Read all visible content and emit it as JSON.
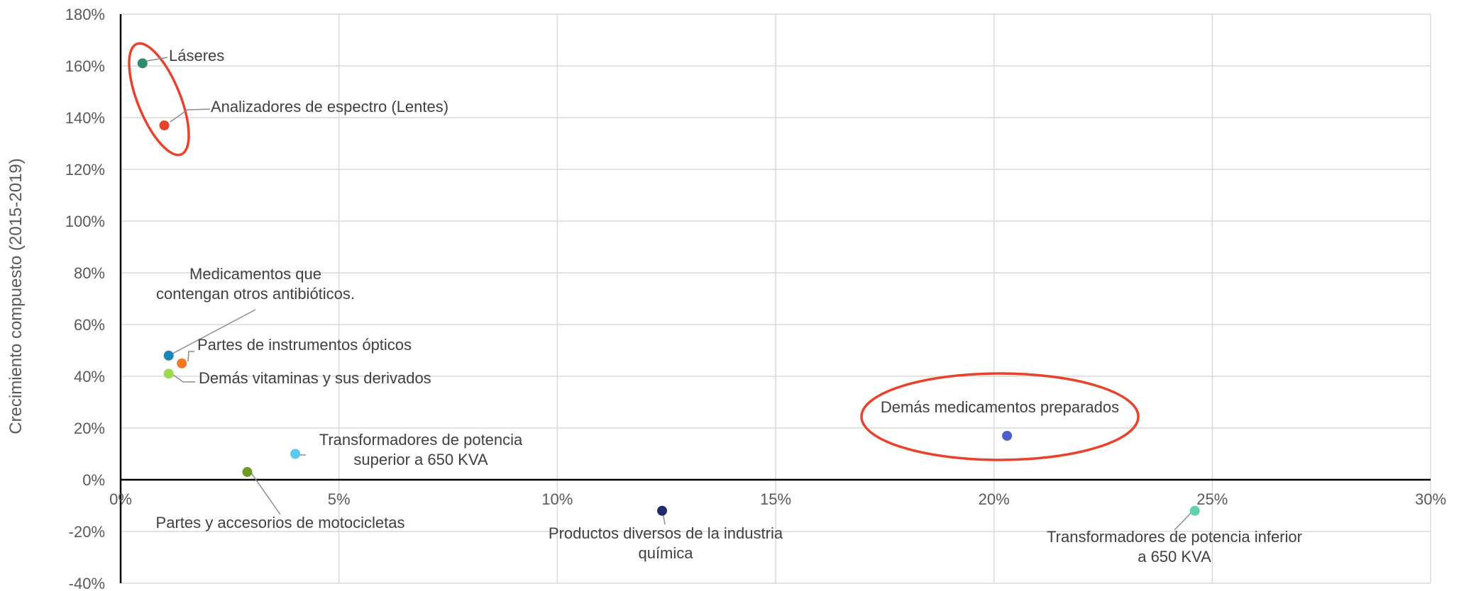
{
  "chart_data": {
    "type": "scatter",
    "title": "",
    "xlabel": "",
    "ylabel": "Crecimiento compuesto (2015-2019)",
    "xlim": [
      0,
      30
    ],
    "ylim": [
      -40,
      180
    ],
    "x_ticks": [
      0,
      5,
      10,
      15,
      20,
      25,
      30
    ],
    "y_ticks": [
      -40,
      -20,
      0,
      20,
      40,
      60,
      80,
      100,
      120,
      140,
      160,
      180
    ],
    "x_tick_format": "%",
    "y_tick_format": "%",
    "grid": true,
    "legend": "none",
    "points": [
      {
        "label": [
          "Láseres"
        ],
        "x": 0.5,
        "y": 161,
        "color": "#2e8b6e"
      },
      {
        "label": [
          "Analizadores de espectro (Lentes)"
        ],
        "x": 1.0,
        "y": 137,
        "color": "#e8412c"
      },
      {
        "label": [
          "Medicamentos que",
          "contengan otros antibióticos."
        ],
        "x": 1.1,
        "y": 48,
        "color": "#1a86b5"
      },
      {
        "label": [
          "Partes de instrumentos ópticos"
        ],
        "x": 1.4,
        "y": 45,
        "color": "#f07a24"
      },
      {
        "label": [
          "Demás vitaminas y sus derivados"
        ],
        "x": 1.1,
        "y": 41,
        "color": "#9bd94e"
      },
      {
        "label": [
          "Transformadores de potencia",
          "superior a 650 KVA"
        ],
        "x": 4.0,
        "y": 10,
        "color": "#5bc8ec"
      },
      {
        "label": [
          "Partes y accesorios de motocicletas"
        ],
        "x": 2.9,
        "y": 3,
        "color": "#6e9c22"
      },
      {
        "label": [
          "Productos diversos de la industria",
          "química"
        ],
        "x": 12.4,
        "y": -12,
        "color": "#1f2a6b"
      },
      {
        "label": [
          "Demás medicamentos preparados"
        ],
        "x": 20.3,
        "y": 17,
        "color": "#4a5fc9"
      },
      {
        "label": [
          "Transformadores de potencia inferior",
          "a 650 KVA"
        ],
        "x": 24.6,
        "y": -12,
        "color": "#5fd3a8"
      }
    ],
    "highlights": [
      {
        "type": "ellipse",
        "around": [
          "Láseres",
          "Analizadores de espectro (Lentes)"
        ],
        "color": "#e8412c"
      },
      {
        "type": "ellipse",
        "around": [
          "Demás medicamentos preparados"
        ],
        "color": "#e8412c"
      }
    ]
  }
}
